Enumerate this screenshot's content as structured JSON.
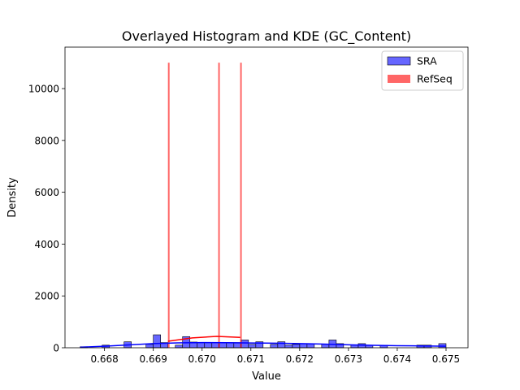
{
  "chart_data": {
    "type": "histogram",
    "title": "Overlayed Histogram and KDE (GC_Content)",
    "xlabel": "Value",
    "ylabel": "Density",
    "xlim": [
      0.66719,
      0.67545
    ],
    "ylim": [
      0,
      11600
    ],
    "xticks": [
      0.668,
      0.669,
      0.67,
      0.671,
      0.672,
      0.673,
      0.674,
      0.675
    ],
    "xtick_labels": [
      "0.668",
      "0.669",
      "0.670",
      "0.671",
      "0.672",
      "0.673",
      "0.674",
      "0.675"
    ],
    "yticks": [
      0,
      2000,
      4000,
      6000,
      8000,
      10000
    ],
    "ytick_labels": [
      "0",
      "2000",
      "4000",
      "6000",
      "8000",
      "10000"
    ],
    "grid": false,
    "legend": {
      "placement": "top-right",
      "entries": [
        {
          "name": "SRA",
          "color": "#0000ff"
        },
        {
          "name": "RefSeq",
          "color": "#ff0000"
        }
      ]
    },
    "series": [
      {
        "name": "SRA",
        "color": "#0000ff",
        "fill_opacity": 0.6,
        "bin_width": 0.00015,
        "bins": [
          [
            0.6675,
            40
          ],
          [
            0.66795,
            100
          ],
          [
            0.6684,
            230
          ],
          [
            0.66885,
            130
          ],
          [
            0.669,
            500
          ],
          [
            0.66915,
            200
          ],
          [
            0.66945,
            100
          ],
          [
            0.6696,
            430
          ],
          [
            0.66975,
            220
          ],
          [
            0.6699,
            200
          ],
          [
            0.67005,
            200
          ],
          [
            0.6702,
            200
          ],
          [
            0.67035,
            200
          ],
          [
            0.6705,
            200
          ],
          [
            0.67065,
            200
          ],
          [
            0.6708,
            300
          ],
          [
            0.67095,
            130
          ],
          [
            0.6711,
            230
          ],
          [
            0.6714,
            130
          ],
          [
            0.67155,
            230
          ],
          [
            0.6717,
            100
          ],
          [
            0.67185,
            130
          ],
          [
            0.672,
            160
          ],
          [
            0.67215,
            160
          ],
          [
            0.67245,
            130
          ],
          [
            0.6726,
            300
          ],
          [
            0.67275,
            160
          ],
          [
            0.67305,
            100
          ],
          [
            0.6732,
            160
          ],
          [
            0.67335,
            100
          ],
          [
            0.67365,
            100
          ],
          [
            0.6744,
            100
          ],
          [
            0.67455,
            100
          ],
          [
            0.67485,
            160
          ]
        ],
        "kde": {
          "x": [
            0.6675,
            0.668,
            0.6685,
            0.669,
            0.6695,
            0.67,
            0.6705,
            0.671,
            0.6715,
            0.672,
            0.6725,
            0.673,
            0.6735,
            0.674,
            0.6745,
            0.675
          ],
          "y": [
            20,
            60,
            110,
            160,
            190,
            200,
            195,
            185,
            175,
            160,
            140,
            115,
            95,
            80,
            70,
            60
          ]
        }
      },
      {
        "name": "RefSeq",
        "color": "#ff0000",
        "fill_opacity": 0.6,
        "bin_width": 1e-05,
        "bins": [
          [
            0.6693,
            11000
          ],
          [
            0.67033,
            11000
          ],
          [
            0.67078,
            11000
          ]
        ],
        "kde": {
          "x": [
            0.6693,
            0.6698,
            0.6703,
            0.67078
          ],
          "y": [
            250,
            380,
            440,
            400
          ]
        }
      }
    ]
  }
}
